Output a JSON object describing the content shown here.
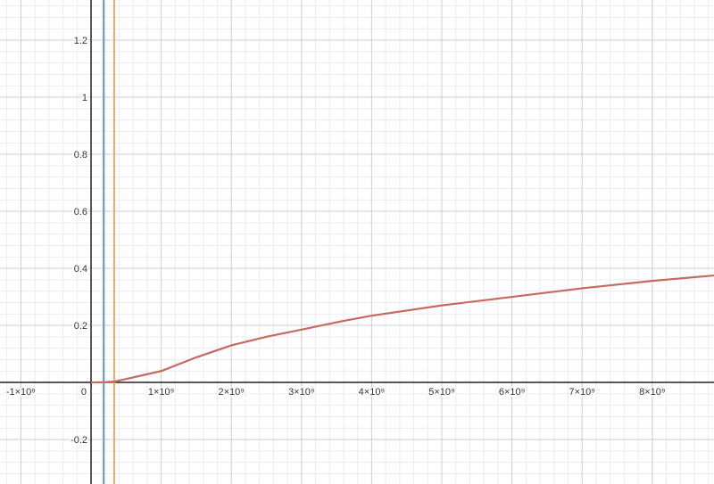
{
  "chart_data": {
    "type": "line",
    "xlim": [
      -1298000000,
      8880000000
    ],
    "ylim": [
      -0.356,
      1.3406
    ],
    "xticks": [
      {
        "value": -1000000000,
        "label": "-1×10⁹"
      },
      {
        "value": 1000000000,
        "label": "1×10⁹"
      },
      {
        "value": 2000000000,
        "label": "2×10⁹"
      },
      {
        "value": 3000000000,
        "label": "3×10⁹"
      },
      {
        "value": 4000000000,
        "label": "4×10⁹"
      },
      {
        "value": 5000000000,
        "label": "5×10⁹"
      },
      {
        "value": 6000000000,
        "label": "6×10⁹"
      },
      {
        "value": 7000000000,
        "label": "7×10⁹"
      },
      {
        "value": 8000000000,
        "label": "8×10⁹"
      }
    ],
    "yticks": [
      -0.2,
      0,
      0.2,
      0.4,
      0.6,
      0.8,
      1,
      1.2
    ],
    "grid": true,
    "vertical_lines": [
      {
        "x": 180000000,
        "color": "#5b9bd5"
      },
      {
        "x": 330000000,
        "color": "#f0a868"
      }
    ],
    "x": [
      0,
      200000000,
      330000000,
      500000000,
      750000000,
      1000000000,
      1500000000,
      2000000000,
      2500000000,
      3000000000,
      3500000000,
      4000000000,
      5000000000,
      6000000000,
      7000000000,
      8000000000,
      8880000000
    ],
    "series": [
      {
        "color": "#c8695f",
        "values": [
          0,
          0.001,
          0.003,
          0.012,
          0.026,
          0.04,
          0.088,
          0.13,
          0.16,
          0.185,
          0.211,
          0.234,
          0.27,
          0.3,
          0.33,
          0.356,
          0.375
        ]
      }
    ]
  }
}
